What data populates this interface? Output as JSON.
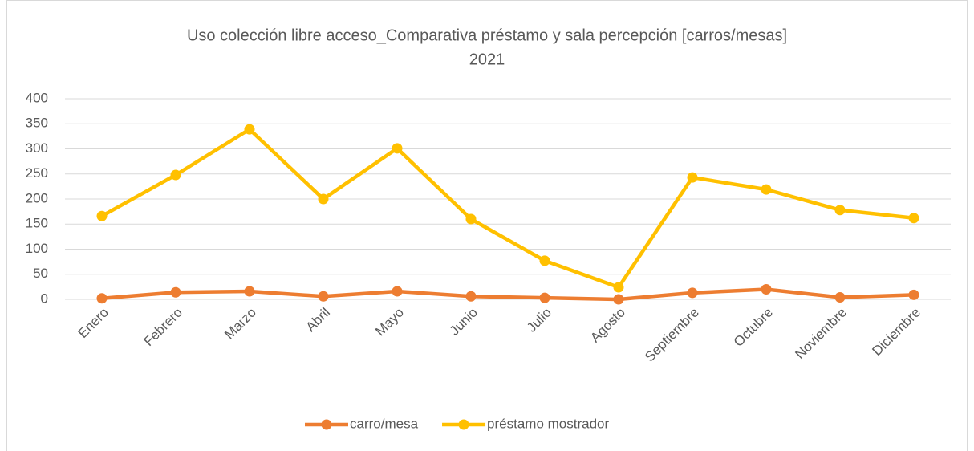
{
  "chart_data": {
    "type": "line",
    "title": "Uso colección libre acceso_Comparativa préstamo y sala percepción [carros/mesas]",
    "subtitle": "2021",
    "categories": [
      "Enero",
      "Febrero",
      "Marzo",
      "Abril",
      "Mayo",
      "Junio",
      "Julio",
      "Agosto",
      "Septiembre",
      "Octubre",
      "Noviembre",
      "Diciembre"
    ],
    "series": [
      {
        "name": "carro/mesa",
        "color": "#ed7d31",
        "values": [
          2,
          14,
          16,
          6,
          16,
          6,
          3,
          0,
          13,
          20,
          4,
          9
        ]
      },
      {
        "name": "préstamo mostrador",
        "color": "#ffc000",
        "values": [
          166,
          248,
          339,
          200,
          301,
          160,
          77,
          24,
          243,
          219,
          178,
          162
        ]
      }
    ],
    "ylim": [
      0,
      400
    ],
    "yticks": [
      0,
      50,
      100,
      150,
      200,
      250,
      300,
      350,
      400
    ],
    "grid": true,
    "legend": "bottom"
  }
}
